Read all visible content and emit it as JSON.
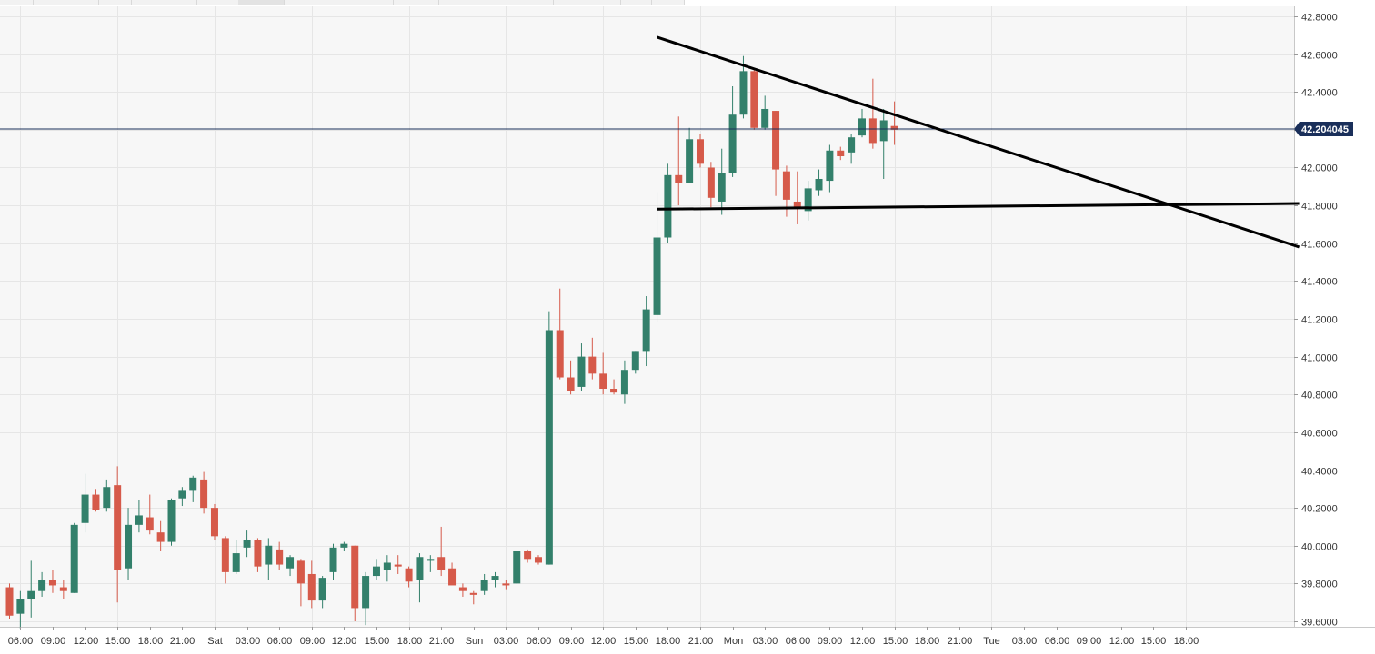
{
  "chart_data": {
    "type": "candlestick",
    "title": "",
    "xlabel": "",
    "ylabel": "",
    "interval": "1h",
    "ylim": [
      39.56,
      42.83
    ],
    "y_ticks": [
      "42.8000",
      "42.6000",
      "42.4000",
      "42.2000",
      "42.0000",
      "41.8000",
      "41.6000",
      "41.4000",
      "41.2000",
      "41.0000",
      "40.8000",
      "40.6000",
      "40.4000",
      "40.2000",
      "40.0000",
      "39.8000",
      "39.6000"
    ],
    "x_ticks": [
      "06:00",
      "09:00",
      "12:00",
      "15:00",
      "18:00",
      "21:00",
      "Sat",
      "03:00",
      "06:00",
      "09:00",
      "12:00",
      "15:00",
      "18:00",
      "21:00",
      "Sun",
      "03:00",
      "06:00",
      "09:00",
      "12:00",
      "15:00",
      "18:00",
      "21:00",
      "Mon",
      "03:00",
      "06:00",
      "09:00",
      "12:00",
      "15:00",
      "18:00",
      "21:00",
      "Tue",
      "03:00",
      "06:00",
      "09:00",
      "12:00",
      "15:00",
      "18:00"
    ],
    "current_price": {
      "value": 42.204045,
      "label": "42.204045"
    },
    "colors": {
      "up": "#33806b",
      "down": "#d65a4a",
      "price_line": "#1a2f5a",
      "price_tag": "#1a2f5a",
      "trendline": "#000000",
      "grid": "#e6e6e6",
      "plot_bg": "#f7f7f7"
    },
    "grid": true,
    "candles": [
      {
        "o": 39.78,
        "h": 39.8,
        "l": 39.61,
        "c": 39.63
      },
      {
        "o": 39.64,
        "h": 39.76,
        "l": 39.56,
        "c": 39.72
      },
      {
        "o": 39.72,
        "h": 39.92,
        "l": 39.62,
        "c": 39.76
      },
      {
        "o": 39.76,
        "h": 39.86,
        "l": 39.73,
        "c": 39.82
      },
      {
        "o": 39.82,
        "h": 39.87,
        "l": 39.75,
        "c": 39.79
      },
      {
        "o": 39.78,
        "h": 39.82,
        "l": 39.72,
        "c": 39.76
      },
      {
        "o": 39.75,
        "h": 40.12,
        "l": 39.75,
        "c": 40.11
      },
      {
        "o": 40.12,
        "h": 40.38,
        "l": 40.07,
        "c": 40.27
      },
      {
        "o": 40.27,
        "h": 40.3,
        "l": 40.18,
        "c": 40.19
      },
      {
        "o": 40.2,
        "h": 40.35,
        "l": 40.18,
        "c": 40.31
      },
      {
        "o": 40.32,
        "h": 40.42,
        "l": 39.7,
        "c": 39.87
      },
      {
        "o": 39.88,
        "h": 40.2,
        "l": 39.82,
        "c": 40.11
      },
      {
        "o": 40.11,
        "h": 40.24,
        "l": 40.07,
        "c": 40.16
      },
      {
        "o": 40.15,
        "h": 40.27,
        "l": 40.06,
        "c": 40.08
      },
      {
        "o": 40.07,
        "h": 40.13,
        "l": 39.97,
        "c": 40.02
      },
      {
        "o": 40.02,
        "h": 40.25,
        "l": 40.0,
        "c": 40.24
      },
      {
        "o": 40.25,
        "h": 40.31,
        "l": 40.21,
        "c": 40.29
      },
      {
        "o": 40.29,
        "h": 40.37,
        "l": 40.23,
        "c": 40.36
      },
      {
        "o": 40.35,
        "h": 40.39,
        "l": 40.17,
        "c": 40.2
      },
      {
        "o": 40.2,
        "h": 40.22,
        "l": 40.03,
        "c": 40.05
      },
      {
        "o": 40.04,
        "h": 40.05,
        "l": 39.8,
        "c": 39.86
      },
      {
        "o": 39.86,
        "h": 40.03,
        "l": 39.85,
        "c": 39.96
      },
      {
        "o": 39.99,
        "h": 40.08,
        "l": 39.94,
        "c": 40.03
      },
      {
        "o": 40.03,
        "h": 40.04,
        "l": 39.86,
        "c": 39.89
      },
      {
        "o": 39.9,
        "h": 40.04,
        "l": 39.82,
        "c": 40.0
      },
      {
        "o": 39.98,
        "h": 40.02,
        "l": 39.87,
        "c": 39.9
      },
      {
        "o": 39.88,
        "h": 39.95,
        "l": 39.84,
        "c": 39.94
      },
      {
        "o": 39.92,
        "h": 39.93,
        "l": 39.68,
        "c": 39.8
      },
      {
        "o": 39.85,
        "h": 39.92,
        "l": 39.67,
        "c": 39.71
      },
      {
        "o": 39.71,
        "h": 39.84,
        "l": 39.67,
        "c": 39.83
      },
      {
        "o": 39.86,
        "h": 40.01,
        "l": 39.82,
        "c": 39.99
      },
      {
        "o": 39.99,
        "h": 40.02,
        "l": 39.97,
        "c": 40.01
      },
      {
        "o": 40.0,
        "h": 40.0,
        "l": 39.6,
        "c": 39.67
      },
      {
        "o": 39.67,
        "h": 39.86,
        "l": 39.58,
        "c": 39.84
      },
      {
        "o": 39.84,
        "h": 39.93,
        "l": 39.82,
        "c": 39.89
      },
      {
        "o": 39.87,
        "h": 39.95,
        "l": 39.81,
        "c": 39.91
      },
      {
        "o": 39.9,
        "h": 39.95,
        "l": 39.85,
        "c": 39.89
      },
      {
        "o": 39.88,
        "h": 39.89,
        "l": 39.78,
        "c": 39.81
      },
      {
        "o": 39.82,
        "h": 39.96,
        "l": 39.7,
        "c": 39.94
      },
      {
        "o": 39.92,
        "h": 39.95,
        "l": 39.86,
        "c": 39.93
      },
      {
        "o": 39.94,
        "h": 40.1,
        "l": 39.84,
        "c": 39.87
      },
      {
        "o": 39.88,
        "h": 39.91,
        "l": 39.8,
        "c": 39.79
      },
      {
        "o": 39.78,
        "h": 39.8,
        "l": 39.73,
        "c": 39.76
      },
      {
        "o": 39.75,
        "h": 39.76,
        "l": 39.69,
        "c": 39.74
      },
      {
        "o": 39.76,
        "h": 39.85,
        "l": 39.74,
        "c": 39.82
      },
      {
        "o": 39.82,
        "h": 39.86,
        "l": 39.78,
        "c": 39.84
      },
      {
        "o": 39.8,
        "h": 39.82,
        "l": 39.77,
        "c": 39.79
      },
      {
        "o": 39.8,
        "h": 39.97,
        "l": 39.8,
        "c": 39.97
      },
      {
        "o": 39.97,
        "h": 39.98,
        "l": 39.91,
        "c": 39.93
      },
      {
        "o": 39.94,
        "h": 39.95,
        "l": 39.9,
        "c": 39.91
      },
      {
        "o": 39.9,
        "h": 41.24,
        "l": 39.9,
        "c": 41.14
      },
      {
        "o": 41.14,
        "h": 41.36,
        "l": 40.88,
        "c": 40.89
      },
      {
        "o": 40.89,
        "h": 40.98,
        "l": 40.8,
        "c": 40.82
      },
      {
        "o": 40.84,
        "h": 41.07,
        "l": 40.82,
        "c": 41.0
      },
      {
        "o": 41.0,
        "h": 41.1,
        "l": 40.88,
        "c": 40.91
      },
      {
        "o": 40.91,
        "h": 41.02,
        "l": 40.8,
        "c": 40.83
      },
      {
        "o": 40.83,
        "h": 40.88,
        "l": 40.8,
        "c": 40.81
      },
      {
        "o": 40.8,
        "h": 40.98,
        "l": 40.75,
        "c": 40.93
      },
      {
        "o": 40.93,
        "h": 41.03,
        "l": 40.91,
        "c": 41.03
      },
      {
        "o": 41.03,
        "h": 41.32,
        "l": 40.95,
        "c": 41.25
      },
      {
        "o": 41.22,
        "h": 41.87,
        "l": 41.18,
        "c": 41.63
      },
      {
        "o": 41.63,
        "h": 42.02,
        "l": 41.6,
        "c": 41.96
      },
      {
        "o": 41.96,
        "h": 42.27,
        "l": 41.8,
        "c": 41.92
      },
      {
        "o": 41.92,
        "h": 42.21,
        "l": 41.92,
        "c": 42.15
      },
      {
        "o": 42.15,
        "h": 42.18,
        "l": 42.0,
        "c": 42.02
      },
      {
        "o": 42.0,
        "h": 42.03,
        "l": 41.79,
        "c": 41.84
      },
      {
        "o": 41.82,
        "h": 42.1,
        "l": 41.75,
        "c": 41.97
      },
      {
        "o": 41.97,
        "h": 42.43,
        "l": 41.95,
        "c": 42.28
      },
      {
        "o": 42.28,
        "h": 42.59,
        "l": 42.26,
        "c": 42.51
      },
      {
        "o": 42.51,
        "h": 42.52,
        "l": 42.2,
        "c": 42.21
      },
      {
        "o": 42.21,
        "h": 42.38,
        "l": 42.2,
        "c": 42.31
      },
      {
        "o": 42.3,
        "h": 42.3,
        "l": 41.85,
        "c": 41.99
      },
      {
        "o": 41.98,
        "h": 42.01,
        "l": 41.74,
        "c": 41.83
      },
      {
        "o": 41.82,
        "h": 41.98,
        "l": 41.7,
        "c": 41.79
      },
      {
        "o": 41.77,
        "h": 41.93,
        "l": 41.72,
        "c": 41.89
      },
      {
        "o": 41.88,
        "h": 41.99,
        "l": 41.85,
        "c": 41.94
      },
      {
        "o": 41.93,
        "h": 42.12,
        "l": 41.87,
        "c": 42.09
      },
      {
        "o": 42.09,
        "h": 42.11,
        "l": 42.04,
        "c": 42.06
      },
      {
        "o": 42.08,
        "h": 42.18,
        "l": 42.02,
        "c": 42.16
      },
      {
        "o": 42.17,
        "h": 42.31,
        "l": 42.16,
        "c": 42.26
      },
      {
        "o": 42.26,
        "h": 42.47,
        "l": 42.1,
        "c": 42.13
      },
      {
        "o": 42.14,
        "h": 42.31,
        "l": 41.94,
        "c": 42.25
      },
      {
        "o": 42.22,
        "h": 42.35,
        "l": 42.12,
        "c": 42.2
      }
    ],
    "annotations": [
      {
        "type": "trendline",
        "name": "descending-resistance",
        "from": {
          "candle": 60,
          "price": 42.69
        },
        "to": {
          "candle": 119.5,
          "price": 41.58
        }
      },
      {
        "type": "trendline",
        "name": "support",
        "from": {
          "candle": 60,
          "price": 41.78
        },
        "to": {
          "candle": 119.5,
          "price": 41.81
        }
      }
    ]
  }
}
